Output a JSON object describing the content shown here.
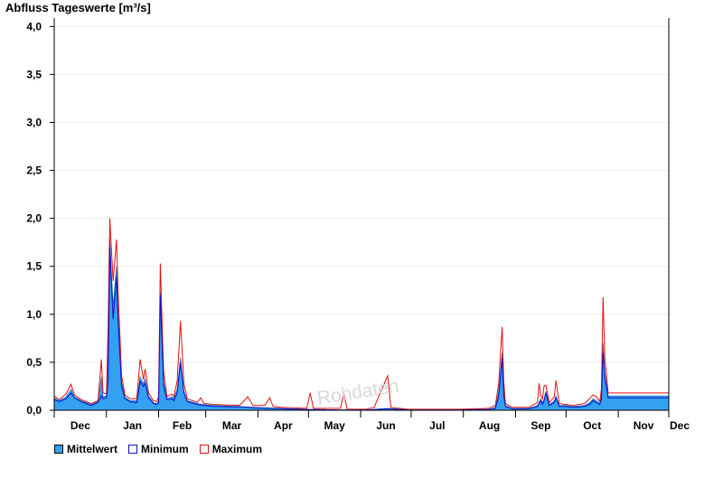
{
  "chart_data": {
    "type": "area",
    "title": "Abfluss Tageswerte [m³/s]",
    "ylim": [
      0,
      4.05
    ],
    "y_ticks": [
      0,
      0.5,
      1.0,
      1.5,
      2.0,
      2.5,
      3.0,
      3.5,
      4.0
    ],
    "y_tick_labels": [
      "0,0",
      "0,5",
      "1,0",
      "1,5",
      "2,0",
      "2,5",
      "3,0",
      "3,5",
      "4,0"
    ],
    "x_tick_labels": [
      "Dec",
      "Jan",
      "Feb",
      "Mar",
      "Apr",
      "May",
      "Jun",
      "Jul",
      "Aug",
      "Sep",
      "Oct",
      "Nov",
      "Dec"
    ],
    "month_lengths": [
      31,
      31,
      28,
      31,
      30,
      31,
      30,
      31,
      31,
      30,
      31,
      30
    ],
    "grid": true,
    "legend_position": "bottom-left",
    "watermark": "Rohdaten",
    "colors": {
      "mittelwert": "#33a0f0",
      "minimum": "#1010c8",
      "maximum": "#e01010",
      "grid": "#eeeeee"
    },
    "series": [
      {
        "name": "Mittelwert",
        "key_points": [
          [
            0,
            0.13
          ],
          [
            3,
            0.1
          ],
          [
            7,
            0.14
          ],
          [
            10,
            0.22
          ],
          [
            12,
            0.14
          ],
          [
            16,
            0.1
          ],
          [
            22,
            0.06
          ],
          [
            26,
            0.09
          ],
          [
            28,
            0.35
          ],
          [
            29,
            0.14
          ],
          [
            31,
            0.15
          ],
          [
            32,
            0.6
          ],
          [
            33,
            1.8
          ],
          [
            35,
            1.1
          ],
          [
            37,
            1.5
          ],
          [
            38,
            1.0
          ],
          [
            40,
            0.3
          ],
          [
            42,
            0.14
          ],
          [
            45,
            0.1
          ],
          [
            49,
            0.1
          ],
          [
            51,
            0.35
          ],
          [
            53,
            0.28
          ],
          [
            54,
            0.33
          ],
          [
            56,
            0.15
          ],
          [
            59,
            0.08
          ],
          [
            61,
            0.07
          ],
          [
            62,
            0.1
          ],
          [
            63,
            1.25
          ],
          [
            65,
            0.3
          ],
          [
            67,
            0.12
          ],
          [
            70,
            0.14
          ],
          [
            71,
            0.12
          ],
          [
            73,
            0.22
          ],
          [
            75,
            0.55
          ],
          [
            77,
            0.2
          ],
          [
            79,
            0.1
          ],
          [
            85,
            0.07
          ],
          [
            89,
            0.06
          ],
          [
            95,
            0.05
          ],
          [
            110,
            0.04
          ],
          [
            120,
            0.03
          ],
          [
            135,
            0.02
          ],
          [
            150,
            0.01
          ],
          [
            170,
            0.005
          ],
          [
            185,
            0.005
          ],
          [
            190,
            0.01
          ],
          [
            198,
            0.02
          ],
          [
            210,
            0.005
          ],
          [
            240,
            0.005
          ],
          [
            258,
            0.01
          ],
          [
            262,
            0.03
          ],
          [
            264,
            0.2
          ],
          [
            266,
            0.6
          ],
          [
            267,
            0.2
          ],
          [
            268,
            0.05
          ],
          [
            272,
            0.02
          ],
          [
            282,
            0.02
          ],
          [
            287,
            0.05
          ],
          [
            289,
            0.12
          ],
          [
            290,
            0.08
          ],
          [
            291,
            0.12
          ],
          [
            292,
            0.2
          ],
          [
            294,
            0.06
          ],
          [
            297,
            0.1
          ],
          [
            298,
            0.15
          ],
          [
            300,
            0.05
          ],
          [
            304,
            0.05
          ],
          [
            308,
            0.04
          ],
          [
            315,
            0.05
          ],
          [
            318,
            0.08
          ],
          [
            320,
            0.12
          ],
          [
            322,
            0.1
          ],
          [
            324,
            0.07
          ],
          [
            325,
            0.15
          ],
          [
            326,
            0.7
          ],
          [
            327,
            0.4
          ],
          [
            329,
            0.15
          ]
        ]
      },
      {
        "name": "Minimum",
        "key_points": [
          [
            0,
            0.11
          ],
          [
            3,
            0.09
          ],
          [
            7,
            0.12
          ],
          [
            10,
            0.18
          ],
          [
            12,
            0.13
          ],
          [
            16,
            0.09
          ],
          [
            22,
            0.05
          ],
          [
            26,
            0.08
          ],
          [
            28,
            0.15
          ],
          [
            29,
            0.12
          ],
          [
            31,
            0.13
          ],
          [
            32,
            0.3
          ],
          [
            33,
            1.7
          ],
          [
            35,
            0.95
          ],
          [
            37,
            1.4
          ],
          [
            38,
            0.9
          ],
          [
            40,
            0.25
          ],
          [
            42,
            0.12
          ],
          [
            45,
            0.09
          ],
          [
            49,
            0.08
          ],
          [
            51,
            0.3
          ],
          [
            53,
            0.25
          ],
          [
            54,
            0.28
          ],
          [
            56,
            0.13
          ],
          [
            59,
            0.07
          ],
          [
            61,
            0.06
          ],
          [
            62,
            0.08
          ],
          [
            63,
            1.2
          ],
          [
            65,
            0.25
          ],
          [
            67,
            0.11
          ],
          [
            70,
            0.12
          ],
          [
            71,
            0.1
          ],
          [
            73,
            0.18
          ],
          [
            75,
            0.5
          ],
          [
            77,
            0.18
          ],
          [
            79,
            0.09
          ],
          [
            85,
            0.06
          ],
          [
            89,
            0.05
          ],
          [
            95,
            0.04
          ],
          [
            110,
            0.035
          ],
          [
            120,
            0.025
          ],
          [
            135,
            0.015
          ],
          [
            150,
            0.008
          ],
          [
            170,
            0.003
          ],
          [
            185,
            0.003
          ],
          [
            190,
            0.008
          ],
          [
            198,
            0.015
          ],
          [
            210,
            0.003
          ],
          [
            240,
            0.003
          ],
          [
            258,
            0.008
          ],
          [
            262,
            0.02
          ],
          [
            264,
            0.15
          ],
          [
            266,
            0.55
          ],
          [
            267,
            0.15
          ],
          [
            268,
            0.04
          ],
          [
            272,
            0.015
          ],
          [
            282,
            0.015
          ],
          [
            287,
            0.04
          ],
          [
            289,
            0.1
          ],
          [
            290,
            0.06
          ],
          [
            291,
            0.1
          ],
          [
            292,
            0.18
          ],
          [
            294,
            0.05
          ],
          [
            297,
            0.08
          ],
          [
            298,
            0.13
          ],
          [
            300,
            0.04
          ],
          [
            304,
            0.04
          ],
          [
            308,
            0.03
          ],
          [
            315,
            0.04
          ],
          [
            318,
            0.06
          ],
          [
            320,
            0.1
          ],
          [
            322,
            0.08
          ],
          [
            324,
            0.06
          ],
          [
            325,
            0.12
          ],
          [
            326,
            0.6
          ],
          [
            327,
            0.35
          ],
          [
            329,
            0.13
          ]
        ]
      },
      {
        "name": "Maximum",
        "key_points": [
          [
            0,
            0.15
          ],
          [
            3,
            0.11
          ],
          [
            7,
            0.17
          ],
          [
            10,
            0.27
          ],
          [
            12,
            0.16
          ],
          [
            16,
            0.11
          ],
          [
            22,
            0.07
          ],
          [
            26,
            0.1
          ],
          [
            28,
            0.53
          ],
          [
            29,
            0.18
          ],
          [
            31,
            0.17
          ],
          [
            32,
            0.85
          ],
          [
            33,
            2.0
          ],
          [
            35,
            1.35
          ],
          [
            37,
            1.78
          ],
          [
            38,
            1.2
          ],
          [
            40,
            0.36
          ],
          [
            42,
            0.16
          ],
          [
            45,
            0.12
          ],
          [
            49,
            0.12
          ],
          [
            51,
            0.53
          ],
          [
            53,
            0.32
          ],
          [
            54,
            0.43
          ],
          [
            56,
            0.18
          ],
          [
            59,
            0.1
          ],
          [
            61,
            0.09
          ],
          [
            62,
            0.14
          ],
          [
            63,
            1.53
          ],
          [
            65,
            0.4
          ],
          [
            67,
            0.14
          ],
          [
            70,
            0.17
          ],
          [
            71,
            0.14
          ],
          [
            73,
            0.3
          ],
          [
            75,
            0.93
          ],
          [
            77,
            0.28
          ],
          [
            79,
            0.12
          ],
          [
            85,
            0.08
          ],
          [
            87,
            0.13
          ],
          [
            89,
            0.07
          ],
          [
            95,
            0.06
          ],
          [
            110,
            0.05
          ],
          [
            115,
            0.14
          ],
          [
            118,
            0.05
          ],
          [
            125,
            0.05
          ],
          [
            128,
            0.13
          ],
          [
            130,
            0.04
          ],
          [
            135,
            0.03
          ],
          [
            150,
            0.02
          ],
          [
            152,
            0.18
          ],
          [
            154,
            0.02
          ],
          [
            170,
            0.02
          ],
          [
            172,
            0.18
          ],
          [
            174,
            0.01
          ],
          [
            185,
            0.01
          ],
          [
            190,
            0.03
          ],
          [
            198,
            0.36
          ],
          [
            200,
            0.03
          ],
          [
            210,
            0.01
          ],
          [
            240,
            0.01
          ],
          [
            258,
            0.02
          ],
          [
            262,
            0.05
          ],
          [
            264,
            0.28
          ],
          [
            266,
            0.87
          ],
          [
            267,
            0.3
          ],
          [
            268,
            0.07
          ],
          [
            272,
            0.03
          ],
          [
            282,
            0.03
          ],
          [
            287,
            0.08
          ],
          [
            288,
            0.28
          ],
          [
            289,
            0.15
          ],
          [
            290,
            0.12
          ],
          [
            291,
            0.26
          ],
          [
            292,
            0.26
          ],
          [
            294,
            0.08
          ],
          [
            297,
            0.14
          ],
          [
            298,
            0.31
          ],
          [
            300,
            0.07
          ],
          [
            304,
            0.06
          ],
          [
            308,
            0.05
          ],
          [
            315,
            0.07
          ],
          [
            318,
            0.12
          ],
          [
            320,
            0.16
          ],
          [
            322,
            0.14
          ],
          [
            324,
            0.09
          ],
          [
            325,
            0.22
          ],
          [
            326,
            1.18
          ],
          [
            327,
            0.55
          ],
          [
            329,
            0.18
          ]
        ]
      }
    ]
  }
}
